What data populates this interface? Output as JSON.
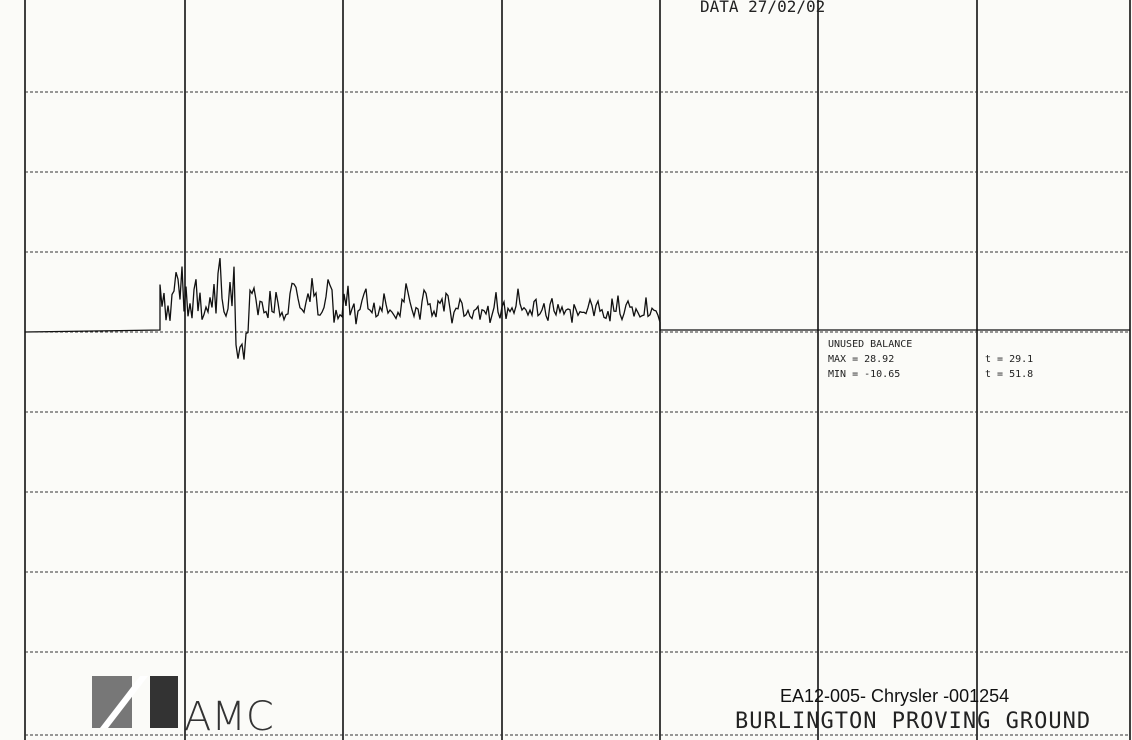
{
  "header": {
    "date": "DATA 27/02/02"
  },
  "readout": {
    "label": "UNUSED BALANCE",
    "max": "MAX = 28.92",
    "min": "MIN = -10.65",
    "time_max": "t = 29.1",
    "time_min": "t = 51.8"
  },
  "footer": {
    "logo": "AMC",
    "stamp": "EA12-005- Chrysler -001254",
    "facility": "BURLINGTON PROVING GROUND"
  }
}
